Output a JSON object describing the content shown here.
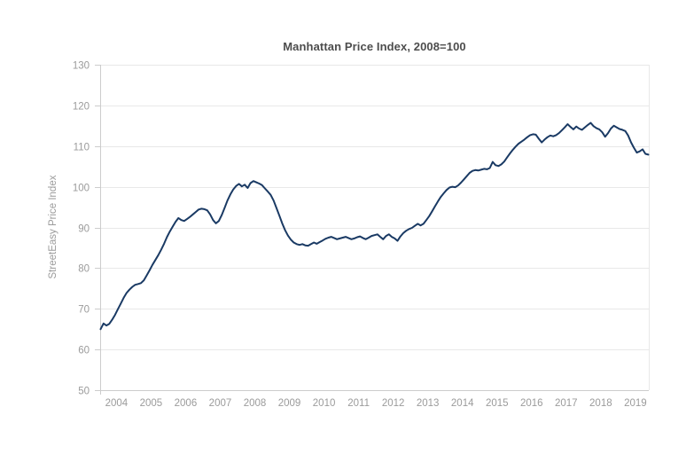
{
  "colors": {
    "background": "#ffffff",
    "line": "#1a3a64",
    "grid": "#e8e8e8",
    "axis": "#cccccc",
    "tick_text": "#9b9b9b",
    "title_text": "#4d4d4d"
  },
  "chart_data": {
    "type": "line",
    "title": "Manhattan Price Index, 2008=100",
    "ylabel": "StreetEasy Price Index",
    "xlabel": "",
    "ylim": [
      50,
      130
    ],
    "y_ticks": [
      50,
      60,
      70,
      80,
      90,
      100,
      110,
      120,
      130
    ],
    "x_tick_labels": [
      "2004",
      "2005",
      "2006",
      "2007",
      "2008",
      "2009",
      "2010",
      "2011",
      "2012",
      "2013",
      "2014",
      "2015",
      "2016",
      "2017",
      "2018",
      "2019"
    ],
    "grid": "horizontal",
    "legend": "none",
    "series": [
      {
        "name": "StreetEasy Price Index",
        "color": "#1a3a64",
        "frequency": "monthly",
        "start_year": 2004,
        "values": [
          65.0,
          66.4,
          65.9,
          66.3,
          67.3,
          68.5,
          69.9,
          71.3,
          72.7,
          73.9,
          74.7,
          75.4,
          75.9,
          76.1,
          76.3,
          77.0,
          78.2,
          79.5,
          80.8,
          82.0,
          83.2,
          84.5,
          86.0,
          87.6,
          89.0,
          90.2,
          91.4,
          92.3,
          91.8,
          91.6,
          92.1,
          92.6,
          93.2,
          93.8,
          94.4,
          94.6,
          94.5,
          94.2,
          93.2,
          91.8,
          91.0,
          91.6,
          93.0,
          94.8,
          96.6,
          98.1,
          99.3,
          100.2,
          100.7,
          100.1,
          100.5,
          99.7,
          100.9,
          101.4,
          101.1,
          100.8,
          100.4,
          99.6,
          98.8,
          98.0,
          96.6,
          94.8,
          92.9,
          91.0,
          89.3,
          88.0,
          87.0,
          86.3,
          85.9,
          85.7,
          85.9,
          85.6,
          85.5,
          85.9,
          86.3,
          86.0,
          86.4,
          86.8,
          87.2,
          87.5,
          87.7,
          87.4,
          87.1,
          87.3,
          87.5,
          87.7,
          87.4,
          87.1,
          87.3,
          87.6,
          87.8,
          87.4,
          87.1,
          87.5,
          87.9,
          88.1,
          88.3,
          87.7,
          87.1,
          87.9,
          88.3,
          87.7,
          87.3,
          86.7,
          87.8,
          88.6,
          89.2,
          89.6,
          89.9,
          90.4,
          90.9,
          90.5,
          90.9,
          91.8,
          92.8,
          94.0,
          95.2,
          96.4,
          97.5,
          98.4,
          99.2,
          99.8,
          100.0,
          99.9,
          100.3,
          101.0,
          101.8,
          102.6,
          103.4,
          103.9,
          104.1,
          104.0,
          104.2,
          104.4,
          104.3,
          104.6,
          106.1,
          105.3,
          105.1,
          105.5,
          106.2,
          107.2,
          108.2,
          109.1,
          109.9,
          110.6,
          111.1,
          111.6,
          112.2,
          112.7,
          112.9,
          112.8,
          111.8,
          110.9,
          111.6,
          112.2,
          112.6,
          112.4,
          112.7,
          113.2,
          113.9,
          114.6,
          115.4,
          114.7,
          114.1,
          114.8,
          114.3,
          114.0,
          114.6,
          115.2,
          115.7,
          114.9,
          114.4,
          114.1,
          113.4,
          112.3,
          113.2,
          114.3,
          115.0,
          114.6,
          114.2,
          114.0,
          113.7,
          112.6,
          110.9,
          109.6,
          108.4,
          108.7,
          109.2,
          108.1,
          107.9
        ]
      }
    ]
  }
}
